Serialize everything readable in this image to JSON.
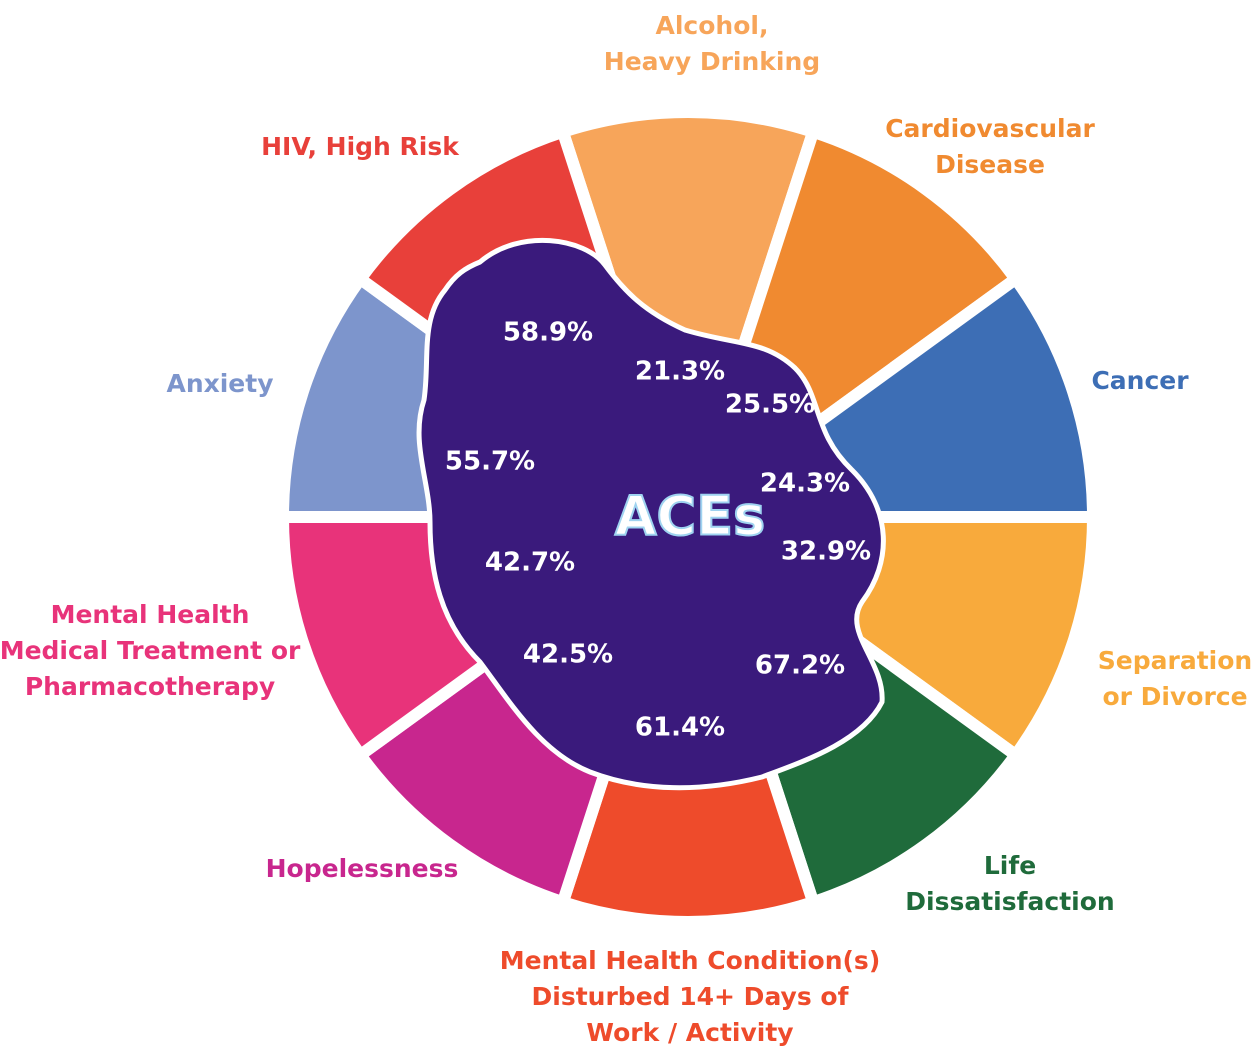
{
  "center_label": "ACEs",
  "segments": [
    {
      "label": [
        "Alcohol,",
        "Heavy Drinking"
      ],
      "value": "21.3%",
      "color": "#f7a55a"
    },
    {
      "label": [
        "Cardiovascular",
        "Disease"
      ],
      "value": "25.5%",
      "color": "#f08a30"
    },
    {
      "label": [
        "Cancer"
      ],
      "value": "24.3%",
      "color": "#3d6eb5"
    },
    {
      "label": [
        "Separation",
        "or Divorce"
      ],
      "value": "32.9%",
      "color": "#f8aa3c"
    },
    {
      "label": [
        "Life",
        "Dissatisfaction"
      ],
      "value": "67.2%",
      "color": "#1f6b3b"
    },
    {
      "label": [
        "Mental Health Condition(s)",
        "Disturbed 14+ Days of",
        "Work / Activity"
      ],
      "value": "61.4%",
      "color": "#ee4b2b"
    },
    {
      "label": [
        "Hopelessness"
      ],
      "value": "42.5%",
      "color": "#c8268e"
    },
    {
      "label": [
        "Mental Health",
        "Medical Treatment or",
        "Pharmacotherapy"
      ],
      "value": "42.7%",
      "color": "#e8337a"
    },
    {
      "label": [
        "Anxiety"
      ],
      "value": "55.7%",
      "color": "#7d95cc"
    },
    {
      "label": [
        "HIV, High Risk"
      ],
      "value": "58.9%",
      "color": "#e8403a"
    }
  ]
}
